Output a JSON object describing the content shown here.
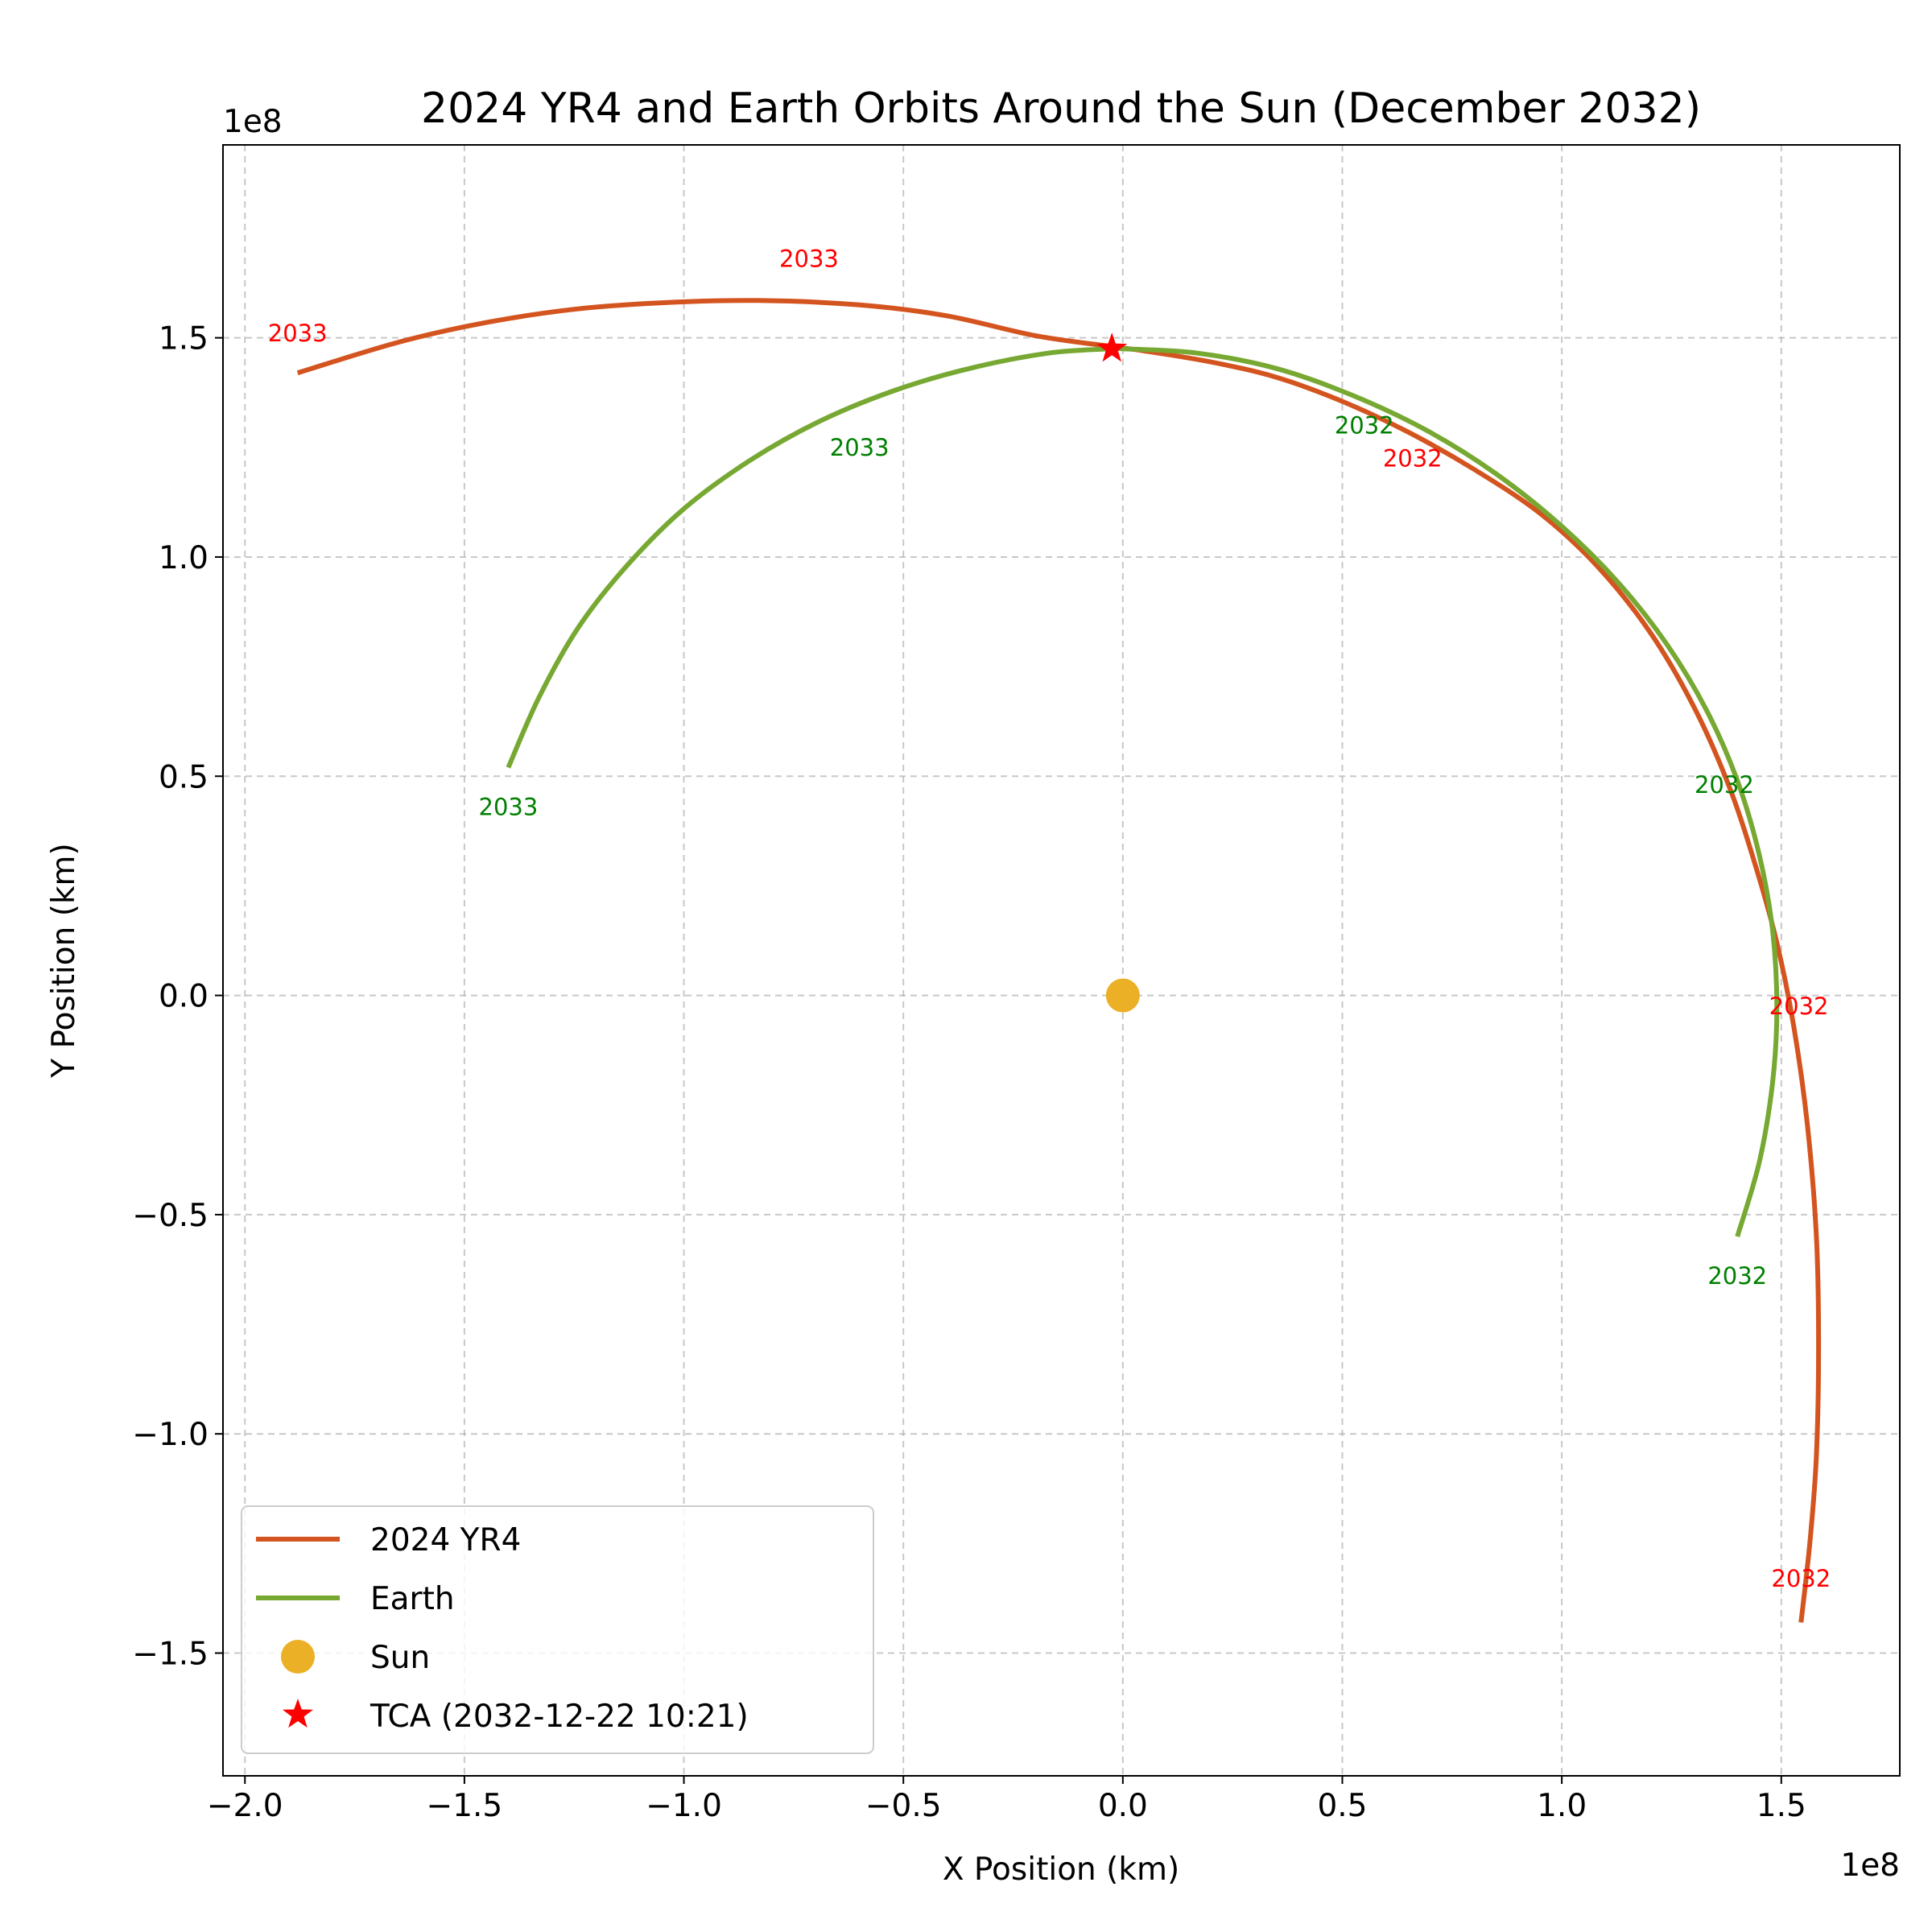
{
  "chart_data": {
    "type": "line",
    "title": "2024 YR4 and Earth Orbits Around the Sun (December 2032)",
    "xlabel": "X Position (km)",
    "ylabel": "Y Position (km)",
    "x_offset_label": "1e8",
    "y_offset_label": "1e8",
    "xlim": [
      -205000000.0,
      177000000.0
    ],
    "ylim": [
      -178000000.0,
      194000000.0
    ],
    "x_ticks": [
      -200000000.0,
      -150000000.0,
      -100000000.0,
      -50000000.0,
      0,
      50000000.0,
      100000000.0,
      150000000.0
    ],
    "x_tick_labels": [
      "−2.0",
      "−1.5",
      "−1.0",
      "−0.5",
      "0.0",
      "0.5",
      "1.0",
      "1.5"
    ],
    "y_ticks": [
      -150000000.0,
      -100000000.0,
      -50000000.0,
      0,
      50000000.0,
      100000000.0,
      150000000.0
    ],
    "y_tick_labels": [
      "−1.5",
      "−1.0",
      "−0.5",
      "0.0",
      "0.5",
      "1.0",
      "1.5"
    ],
    "grid": true,
    "legend_position": "lower-left",
    "series": [
      {
        "name": "2024 YR4",
        "color": "#d4541f",
        "x": [
          154500000.0,
          156500000.0,
          158000000.0,
          158500000.0,
          158000000.0,
          156000000.0,
          153000000.0,
          149000000.0,
          144000000.0,
          138000000.0,
          130000000.0,
          120000000.0,
          108000000.0,
          95000000.0,
          80000000.0,
          65000000.0,
          50000000.0,
          35000000.0,
          20000000.0,
          5000000.0,
          -2500000.0,
          -20000000.0,
          -40000000.0,
          -60000000.0,
          -83000000.0,
          -105000000.0,
          -125000000.0,
          -145000000.0,
          -165000000.0,
          -188000000.0
        ],
        "y": [
          -143000000.0,
          -125000000.0,
          -105000000.0,
          -80000000.0,
          -55000000.0,
          -30000000.0,
          -8000000.0,
          12000000.0,
          30000000.0,
          48000000.0,
          66000000.0,
          83000000.0,
          98000000.0,
          110000000.0,
          120000000.0,
          128500000.0,
          135500000.0,
          141000000.0,
          144500000.0,
          147000000.0,
          148000000.0,
          150500000.0,
          155000000.0,
          157500000.0,
          158500000.0,
          158000000.0,
          156500000.0,
          153500000.0,
          149000000.0,
          142000000.0
        ]
      },
      {
        "name": "Earth",
        "color": "#76a832",
        "x": [
          140000000.0,
          145000000.0,
          148000000.0,
          149000000.0,
          148000000.0,
          145000000.0,
          140000000.0,
          133000000.0,
          124000000.0,
          113000000.0,
          100000000.0,
          85000000.0,
          69000000.0,
          52000000.0,
          35000000.0,
          17000000.0,
          0,
          -2500000.0,
          -17000000.0,
          -35000000.0,
          -52000000.0,
          -69000000.0,
          -85000000.0,
          -100000000.0,
          -113000000.0,
          -124000000.0,
          -133000000.0,
          -140000000.0
        ],
        "y": [
          -55000000.0,
          -38000000.0,
          -20000000.0,
          -3000000.0,
          15000000.0,
          32000000.0,
          49000000.0,
          65000000.0,
          80000000.0,
          94000000.0,
          107000000.0,
          119000000.0,
          129000000.0,
          137000000.0,
          143000000.0,
          146500000.0,
          147500000.0,
          147500000.0,
          146500000.0,
          143000000.0,
          138000000.0,
          131000000.0,
          122000000.0,
          111000000.0,
          98000000.0,
          84000000.0,
          68000000.0,
          52000000.0
        ]
      }
    ],
    "sun": {
      "label": "Sun",
      "x": 0,
      "y": 0,
      "color": "#ebb026"
    },
    "tca": {
      "label": "TCA (2032-12-22 10:21)",
      "x": -2500000.0,
      "y": 147500000.0,
      "color": "#ff0000"
    },
    "annotations": [
      {
        "text": "2032",
        "x": 154500000.0,
        "y": -133000000.0,
        "color": "#ff0000"
      },
      {
        "text": "2032",
        "x": 154000000.0,
        "y": -2500000.0,
        "color": "#ff0000"
      },
      {
        "text": "2032",
        "x": 66000000.0,
        "y": 122500000.0,
        "color": "#ff0000"
      },
      {
        "text": "2033",
        "x": -71500000.0,
        "y": 168000000.0,
        "color": "#ff0000"
      },
      {
        "text": "2033",
        "x": -188000000.0,
        "y": 151000000.0,
        "color": "#ff0000"
      },
      {
        "text": "2032",
        "x": 140000000.0,
        "y": -64000000.0,
        "color": "#008000"
      },
      {
        "text": "2032",
        "x": 137000000.0,
        "y": 48000000.0,
        "color": "#008000"
      },
      {
        "text": "2032",
        "x": 55000000.0,
        "y": 130000000.0,
        "color": "#008000"
      },
      {
        "text": "2033",
        "x": -60000000.0,
        "y": 125000000.0,
        "color": "#008000"
      },
      {
        "text": "2033",
        "x": -140000000.0,
        "y": 43000000.0,
        "color": "#008000"
      }
    ]
  }
}
